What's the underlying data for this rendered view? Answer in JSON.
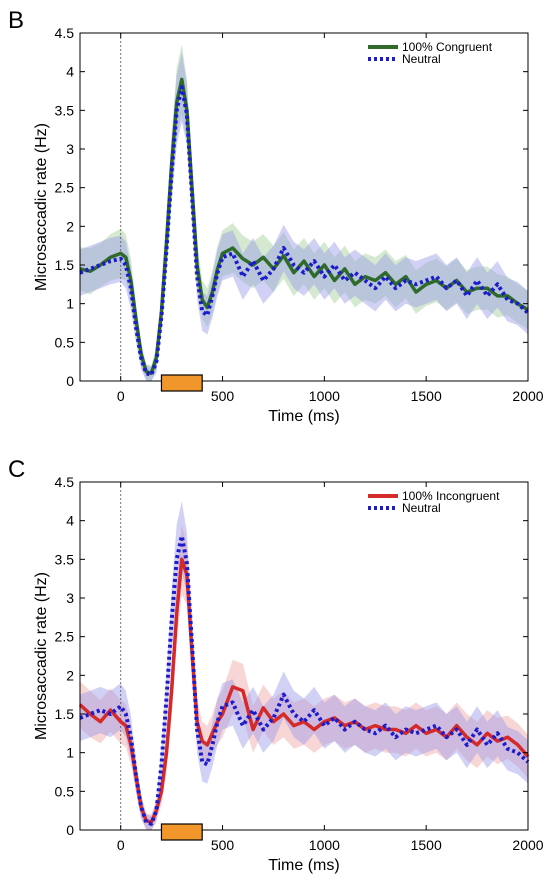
{
  "chart_data": [
    {
      "panel": "B",
      "type": "line",
      "xlabel": "Time (ms)",
      "ylabel": "Microsaccadic rate (Hz)",
      "xlim": [
        -200,
        2000
      ],
      "ylim": [
        0,
        4.5
      ],
      "xticks": [
        0,
        500,
        1000,
        1500,
        2000
      ],
      "yticks": [
        0,
        0.5,
        1,
        1.5,
        2,
        2.5,
        3,
        3.5,
        4,
        4.5
      ],
      "stimulus_bar": [
        200,
        400
      ],
      "legend_position": "top-right",
      "series": [
        {
          "name": "100% Congruent",
          "color": "#2e6b2b",
          "band_color": "#9fcf97",
          "style": "solid",
          "x": [
            -200,
            -150,
            -100,
            -50,
            0,
            25,
            50,
            75,
            100,
            125,
            150,
            175,
            200,
            225,
            250,
            275,
            300,
            325,
            350,
            375,
            400,
            425,
            450,
            475,
            500,
            550,
            600,
            650,
            700,
            750,
            800,
            850,
            900,
            950,
            1000,
            1050,
            1100,
            1150,
            1200,
            1250,
            1300,
            1350,
            1400,
            1450,
            1500,
            1550,
            1600,
            1650,
            1700,
            1750,
            1800,
            1850,
            1900,
            1950,
            2000
          ],
          "y": [
            1.45,
            1.42,
            1.5,
            1.6,
            1.65,
            1.6,
            1.3,
            0.8,
            0.35,
            0.12,
            0.1,
            0.3,
            0.9,
            1.8,
            2.8,
            3.6,
            3.9,
            3.5,
            2.5,
            1.5,
            1.05,
            0.95,
            1.15,
            1.45,
            1.65,
            1.72,
            1.58,
            1.5,
            1.6,
            1.45,
            1.62,
            1.4,
            1.55,
            1.35,
            1.5,
            1.3,
            1.45,
            1.25,
            1.35,
            1.3,
            1.4,
            1.25,
            1.35,
            1.15,
            1.25,
            1.3,
            1.2,
            1.3,
            1.15,
            1.2,
            1.2,
            1.1,
            1.1,
            1.0,
            0.92
          ],
          "band": [
            0.28,
            0.3,
            0.28,
            0.3,
            0.32,
            0.3,
            0.28,
            0.2,
            0.15,
            0.1,
            0.1,
            0.15,
            0.2,
            0.3,
            0.4,
            0.45,
            0.45,
            0.4,
            0.35,
            0.3,
            0.25,
            0.25,
            0.28,
            0.3,
            0.3,
            0.32,
            0.3,
            0.3,
            0.3,
            0.3,
            0.3,
            0.3,
            0.3,
            0.3,
            0.3,
            0.3,
            0.3,
            0.3,
            0.3,
            0.3,
            0.3,
            0.3,
            0.28,
            0.28,
            0.28,
            0.28,
            0.28,
            0.28,
            0.28,
            0.28,
            0.28,
            0.28,
            0.25,
            0.25,
            0.25
          ]
        },
        {
          "name": "Neutral",
          "color": "#1c1ccc",
          "band_color": "#9a9ae8",
          "style": "dotted",
          "x": [
            -200,
            -150,
            -100,
            -50,
            0,
            25,
            50,
            75,
            100,
            125,
            150,
            175,
            200,
            225,
            250,
            275,
            300,
            325,
            350,
            375,
            400,
            425,
            450,
            475,
            500,
            550,
            600,
            650,
            700,
            750,
            800,
            850,
            900,
            950,
            1000,
            1050,
            1100,
            1150,
            1200,
            1250,
            1300,
            1350,
            1400,
            1450,
            1500,
            1550,
            1600,
            1650,
            1700,
            1750,
            1800,
            1850,
            1900,
            1950,
            2000
          ],
          "y": [
            1.4,
            1.45,
            1.5,
            1.55,
            1.58,
            1.5,
            1.2,
            0.7,
            0.3,
            0.1,
            0.08,
            0.25,
            0.85,
            1.7,
            2.7,
            3.5,
            3.8,
            3.45,
            2.4,
            1.35,
            0.9,
            0.85,
            1.1,
            1.4,
            1.6,
            1.65,
            1.35,
            1.55,
            1.3,
            1.45,
            1.72,
            1.5,
            1.4,
            1.55,
            1.35,
            1.5,
            1.3,
            1.4,
            1.3,
            1.2,
            1.35,
            1.2,
            1.3,
            1.25,
            1.3,
            1.35,
            1.2,
            1.3,
            1.1,
            1.3,
            1.1,
            1.25,
            1.05,
            1.0,
            0.88
          ],
          "band": [
            0.3,
            0.3,
            0.3,
            0.3,
            0.3,
            0.3,
            0.28,
            0.2,
            0.15,
            0.1,
            0.1,
            0.15,
            0.2,
            0.3,
            0.4,
            0.45,
            0.45,
            0.4,
            0.35,
            0.3,
            0.25,
            0.25,
            0.28,
            0.3,
            0.3,
            0.3,
            0.3,
            0.3,
            0.3,
            0.3,
            0.3,
            0.3,
            0.3,
            0.3,
            0.3,
            0.3,
            0.3,
            0.3,
            0.3,
            0.3,
            0.3,
            0.3,
            0.3,
            0.3,
            0.3,
            0.3,
            0.3,
            0.3,
            0.3,
            0.3,
            0.3,
            0.3,
            0.28,
            0.28,
            0.28
          ]
        }
      ]
    },
    {
      "panel": "C",
      "type": "line",
      "xlabel": "Time (ms)",
      "ylabel": "Microsaccadic rate (Hz)",
      "xlim": [
        -200,
        2000
      ],
      "ylim": [
        0,
        4.5
      ],
      "xticks": [
        0,
        500,
        1000,
        1500,
        2000
      ],
      "yticks": [
        0,
        0.5,
        1,
        1.5,
        2,
        2.5,
        3,
        3.5,
        4,
        4.5
      ],
      "stimulus_bar": [
        200,
        400
      ],
      "legend_position": "top-right",
      "series": [
        {
          "name": "100% Incongruent",
          "color": "#d42a2a",
          "band_color": "#f2a3a3",
          "style": "solid",
          "x": [
            -200,
            -150,
            -100,
            -50,
            0,
            25,
            50,
            75,
            100,
            125,
            150,
            175,
            200,
            225,
            250,
            275,
            300,
            325,
            350,
            375,
            400,
            425,
            450,
            475,
            500,
            550,
            600,
            650,
            700,
            750,
            800,
            850,
            900,
            950,
            1000,
            1050,
            1100,
            1150,
            1200,
            1250,
            1300,
            1350,
            1400,
            1450,
            1500,
            1550,
            1600,
            1650,
            1700,
            1750,
            1800,
            1850,
            1900,
            1950,
            2000
          ],
          "y": [
            1.62,
            1.5,
            1.4,
            1.55,
            1.4,
            1.35,
            1.1,
            0.7,
            0.3,
            0.12,
            0.1,
            0.25,
            0.5,
            1.0,
            1.8,
            2.8,
            3.5,
            3.3,
            2.3,
            1.4,
            1.15,
            1.1,
            1.25,
            1.4,
            1.5,
            1.85,
            1.8,
            1.3,
            1.58,
            1.4,
            1.5,
            1.35,
            1.4,
            1.3,
            1.4,
            1.45,
            1.35,
            1.4,
            1.3,
            1.35,
            1.3,
            1.3,
            1.25,
            1.35,
            1.25,
            1.3,
            1.2,
            1.35,
            1.2,
            1.1,
            1.25,
            1.15,
            1.2,
            1.1,
            0.95
          ],
          "band": [
            0.3,
            0.3,
            0.28,
            0.28,
            0.28,
            0.28,
            0.25,
            0.2,
            0.15,
            0.1,
            0.1,
            0.12,
            0.18,
            0.25,
            0.35,
            0.4,
            0.45,
            0.4,
            0.35,
            0.3,
            0.25,
            0.25,
            0.25,
            0.3,
            0.3,
            0.35,
            0.35,
            0.3,
            0.3,
            0.3,
            0.3,
            0.3,
            0.3,
            0.3,
            0.3,
            0.3,
            0.3,
            0.3,
            0.3,
            0.3,
            0.3,
            0.3,
            0.3,
            0.3,
            0.3,
            0.3,
            0.3,
            0.3,
            0.3,
            0.3,
            0.3,
            0.3,
            0.28,
            0.28,
            0.28
          ]
        },
        {
          "name": "Neutral",
          "color": "#1c1ccc",
          "band_color": "#9a9ae8",
          "style": "dotted",
          "x": [
            -200,
            -150,
            -100,
            -50,
            0,
            25,
            50,
            75,
            100,
            125,
            150,
            175,
            200,
            225,
            250,
            275,
            300,
            325,
            350,
            375,
            400,
            425,
            450,
            475,
            500,
            550,
            600,
            650,
            700,
            750,
            800,
            850,
            900,
            950,
            1000,
            1050,
            1100,
            1150,
            1200,
            1250,
            1300,
            1350,
            1400,
            1450,
            1500,
            1550,
            1600,
            1650,
            1700,
            1750,
            1800,
            1850,
            1900,
            1950,
            2000
          ],
          "y": [
            1.45,
            1.5,
            1.55,
            1.5,
            1.6,
            1.5,
            1.2,
            0.7,
            0.3,
            0.1,
            0.08,
            0.25,
            0.85,
            1.7,
            2.7,
            3.5,
            3.8,
            3.45,
            2.4,
            1.3,
            0.88,
            0.85,
            1.1,
            1.4,
            1.6,
            1.65,
            1.35,
            1.55,
            1.3,
            1.45,
            1.75,
            1.5,
            1.4,
            1.55,
            1.35,
            1.45,
            1.3,
            1.4,
            1.3,
            1.25,
            1.35,
            1.2,
            1.3,
            1.25,
            1.3,
            1.35,
            1.2,
            1.3,
            1.1,
            1.3,
            1.1,
            1.25,
            1.05,
            1.0,
            0.88
          ],
          "band": [
            0.3,
            0.3,
            0.3,
            0.3,
            0.3,
            0.3,
            0.28,
            0.2,
            0.15,
            0.1,
            0.1,
            0.15,
            0.2,
            0.3,
            0.4,
            0.45,
            0.45,
            0.4,
            0.35,
            0.3,
            0.25,
            0.25,
            0.28,
            0.3,
            0.3,
            0.3,
            0.3,
            0.3,
            0.3,
            0.3,
            0.3,
            0.3,
            0.3,
            0.3,
            0.3,
            0.3,
            0.3,
            0.3,
            0.3,
            0.3,
            0.3,
            0.3,
            0.3,
            0.3,
            0.3,
            0.3,
            0.3,
            0.3,
            0.3,
            0.3,
            0.3,
            0.3,
            0.28,
            0.28,
            0.28
          ]
        }
      ]
    }
  ],
  "colors": {
    "stimulus_bar_fill": "#f0962b",
    "stimulus_bar_stroke": "#000000",
    "zero_line": "#555555"
  }
}
